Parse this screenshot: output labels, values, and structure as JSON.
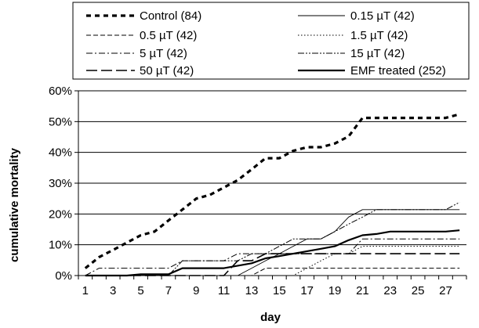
{
  "chart_data": {
    "type": "line",
    "title": "",
    "xlabel": "day",
    "ylabel": "cumulative mortality",
    "xlim": [
      1,
      28
    ],
    "ylim": [
      0,
      60
    ],
    "x_ticks": [
      1,
      3,
      5,
      7,
      9,
      11,
      13,
      15,
      17,
      19,
      21,
      23,
      25,
      27
    ],
    "y_ticks": [
      "0%",
      "10%",
      "20%",
      "30%",
      "40%",
      "50%",
      "60%"
    ],
    "grid": "horizontal",
    "legend_position": "top",
    "x": [
      1,
      2,
      3,
      4,
      5,
      6,
      7,
      8,
      9,
      10,
      11,
      12,
      13,
      14,
      15,
      16,
      17,
      18,
      19,
      20,
      21,
      22,
      23,
      24,
      25,
      26,
      27,
      28
    ],
    "series": [
      {
        "name": "Control (84)",
        "style": "dotted-bold",
        "values": [
          2.4,
          6.0,
          8.3,
          10.7,
          13.1,
          14.3,
          17.9,
          21.4,
          25.0,
          26.2,
          28.6,
          31.0,
          34.5,
          38.1,
          38.1,
          40.5,
          41.7,
          41.7,
          42.9,
          45.2,
          51.2,
          51.2,
          51.2,
          51.2,
          51.2,
          51.2,
          51.2,
          52.4
        ]
      },
      {
        "name": "0.15 µT (42)",
        "style": "thin-solid",
        "values": [
          0,
          0,
          0,
          0,
          0,
          0,
          0,
          0,
          0,
          0,
          0,
          0,
          2.4,
          4.8,
          7.1,
          9.5,
          11.9,
          11.9,
          14.3,
          19.0,
          21.4,
          21.4,
          21.4,
          21.4,
          21.4,
          21.4,
          21.4,
          21.4
        ]
      },
      {
        "name": "0.5 µT (42)",
        "style": "dashed-thin",
        "values": [
          0,
          0,
          0,
          0,
          0,
          0,
          0,
          0,
          0,
          0,
          0,
          0,
          0,
          2.4,
          2.4,
          2.4,
          2.4,
          2.4,
          2.4,
          2.4,
          2.4,
          2.4,
          2.4,
          2.4,
          2.4,
          2.4,
          2.4,
          2.4
        ]
      },
      {
        "name": "1.5 µT (42)",
        "style": "dotted",
        "values": [
          0,
          0,
          0,
          0,
          0,
          0,
          0,
          0,
          0,
          0,
          0,
          0,
          0,
          0,
          0,
          0,
          2.4,
          4.8,
          7.1,
          7.1,
          9.5,
          9.5,
          9.5,
          9.5,
          9.5,
          9.5,
          9.5,
          9.5
        ]
      },
      {
        "name": "5 µT (42)",
        "style": "dash-dot",
        "values": [
          0,
          2.4,
          2.4,
          2.4,
          2.4,
          2.4,
          2.4,
          4.8,
          4.8,
          4.8,
          4.8,
          7.1,
          7.1,
          7.1,
          7.1,
          7.1,
          7.1,
          7.1,
          7.1,
          7.1,
          11.9,
          11.9,
          11.9,
          11.9,
          11.9,
          11.9,
          11.9,
          11.9
        ]
      },
      {
        "name": "15 µT (42)",
        "style": "dash-dot-dot",
        "values": [
          0,
          0,
          0,
          0,
          0,
          0,
          0,
          4.8,
          4.8,
          4.8,
          4.8,
          4.8,
          7.1,
          7.1,
          9.5,
          11.9,
          11.9,
          11.9,
          14.3,
          16.7,
          19.0,
          21.4,
          21.4,
          21.4,
          21.4,
          21.4,
          21.4,
          23.8
        ]
      },
      {
        "name": "50 µT (42)",
        "style": "long-dash",
        "values": [
          0,
          0,
          0,
          0,
          0,
          0,
          0,
          0,
          0,
          0,
          0,
          4.8,
          4.8,
          7.1,
          7.1,
          7.1,
          7.1,
          7.1,
          7.1,
          7.1,
          7.1,
          7.1,
          7.1,
          7.1,
          7.1,
          7.1,
          7.1,
          7.1
        ]
      },
      {
        "name": "EMF treated (252)",
        "style": "bold-solid",
        "values": [
          0,
          0,
          0,
          0,
          0.4,
          0.4,
          0.4,
          2.4,
          2.4,
          2.4,
          2.4,
          3.2,
          4.0,
          5.6,
          6.3,
          7.1,
          7.9,
          8.7,
          9.5,
          11.5,
          13.1,
          13.5,
          14.3,
          14.3,
          14.3,
          14.3,
          14.3,
          14.7
        ]
      }
    ]
  }
}
